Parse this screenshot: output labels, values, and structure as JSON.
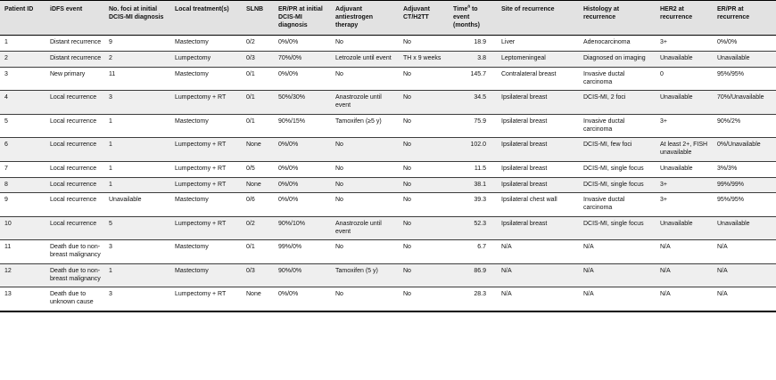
{
  "table": {
    "colors": {
      "header_bg": "#e2e2e2",
      "stripe_bg": "#efefef",
      "rule": "#000000"
    },
    "columns": [
      {
        "label": "Patient ID"
      },
      {
        "label": "iDFS event"
      },
      {
        "label": "No. foci at initial DCIS-MI diagnosis"
      },
      {
        "label": "Local treatment(s)"
      },
      {
        "label": "SLNB"
      },
      {
        "label": "ER/PR at initial DCIS-MI diagnosis"
      },
      {
        "label": "Adjuvant antiestrogen therapy"
      },
      {
        "label": "Adjuvant CT/H2TT"
      },
      {
        "label": "Time",
        "sup": "a",
        "rest": " to event (months)"
      },
      {
        "label": "Site of recurrence"
      },
      {
        "label": "Histology at recurrence"
      },
      {
        "label": "HER2 at recurrence"
      },
      {
        "label": "ER/PR at recurrence"
      }
    ],
    "rows": [
      [
        "1",
        "Distant recurrence",
        "9",
        "Mastectomy",
        "0/2",
        "0%/0%",
        "No",
        "No",
        "18.9",
        "Liver",
        "Adenocarcinoma",
        "3+",
        "0%/0%"
      ],
      [
        "2",
        "Distant recurrence",
        "2",
        "Lumpectomy",
        "0/3",
        "70%/0%",
        "Letrozole until event",
        "TH x 9 weeks",
        "3.8",
        "Leptomeningeal",
        "Diagnosed on imaging",
        "Unavailable",
        "Unavailable"
      ],
      [
        "3",
        "New primary",
        "11",
        "Mastectomy",
        "0/1",
        "0%/0%",
        "No",
        "No",
        "145.7",
        "Contralateral breast",
        "Invasive ductal carcinoma",
        "0",
        "95%/95%"
      ],
      [
        "4",
        "Local recurrence",
        "3",
        "Lumpectomy + RT",
        "0/1",
        "50%/30%",
        "Anastrozole until event",
        "No",
        "34.5",
        "Ipsilateral breast",
        "DCIS-MI, 2 foci",
        "Unavailable",
        "70%/Unavailable"
      ],
      [
        "5",
        "Local recurrence",
        "1",
        "Mastectomy",
        "0/1",
        "90%/15%",
        "Tamoxifen (≥5 y)",
        "No",
        "75.9",
        "Ipsilateral breast",
        "Invasive ductal carcinoma",
        "3+",
        "90%/2%"
      ],
      [
        "6",
        "Local recurrence",
        "1",
        "Lumpectomy + RT",
        "None",
        "0%/0%",
        "No",
        "No",
        "102.0",
        "Ipsilateral breast",
        "DCIS-MI, few foci",
        "At least 2+, FISH unavailable",
        "0%/Unavailable"
      ],
      [
        "7",
        "Local recurrence",
        "1",
        "Lumpectomy + RT",
        "0/5",
        "0%/0%",
        "No",
        "No",
        "11.5",
        "Ipsilateral breast",
        "DCIS-MI, single focus",
        "Unavailable",
        "3%/3%"
      ],
      [
        "8",
        "Local recurrence",
        "1",
        "Lumpectomy + RT",
        "None",
        "0%/0%",
        "No",
        "No",
        "38.1",
        "Ipsilateral breast",
        "DCIS-MI, single focus",
        "3+",
        "99%/99%"
      ],
      [
        "9",
        "Local recurrence",
        "Unavailable",
        "Mastectomy",
        "0/6",
        "0%/0%",
        "No",
        "No",
        "39.3",
        "Ipsilateral chest wall",
        "Invasive ductal carcinoma",
        "3+",
        "95%/95%"
      ],
      [
        "10",
        "Local recurrence",
        "5",
        "Lumpectomy + RT",
        "0/2",
        "90%/10%",
        "Anastrozole until event",
        "No",
        "52.3",
        "Ipsilateral breast",
        "DCIS-MI, single focus",
        "Unavailable",
        "Unavailable"
      ],
      [
        "11",
        "Death due to non-breast malignancy",
        "3",
        "Mastectomy",
        "0/1",
        "99%/0%",
        "No",
        "No",
        "6.7",
        "N/A",
        "N/A",
        "N/A",
        "N/A"
      ],
      [
        "12",
        "Death due to non-breast malignancy",
        "1",
        "Mastectomy",
        "0/3",
        "90%/0%",
        "Tamoxifen (5 y)",
        "No",
        "86.9",
        "N/A",
        "N/A",
        "N/A",
        "N/A"
      ],
      [
        "13",
        "Death due to unknown cause",
        "3",
        "Lumpectomy + RT",
        "None",
        "0%/0%",
        "No",
        "No",
        "28.3",
        "N/A",
        "N/A",
        "N/A",
        "N/A"
      ]
    ]
  }
}
